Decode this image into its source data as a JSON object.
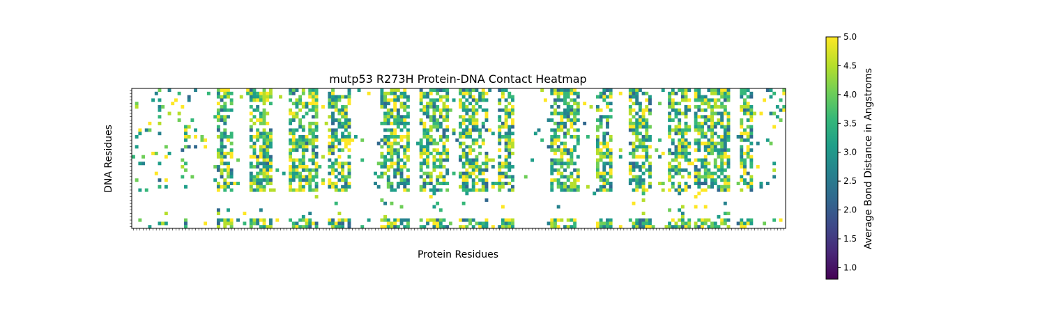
{
  "chart_data": {
    "type": "heatmap",
    "title": "mutp53 R273H Protein-DNA Contact Heatmap",
    "xlabel": "Protein Residues",
    "ylabel": "DNA Residues",
    "colorbar": {
      "label": "Average Bond Distance in Angstroms",
      "colormap": "viridis",
      "range": [
        0.8,
        5.0
      ],
      "ticks": [
        "1.0",
        "1.5",
        "2.0",
        "2.5",
        "3.0",
        "3.5",
        "4.0",
        "4.5",
        "5.0"
      ]
    },
    "n_protein_residues": 200,
    "n_dna_residues": 42,
    "colors": {
      "viridis": [
        "#440154",
        "#482878",
        "#3e4989",
        "#31688e",
        "#26828e",
        "#1f9e89",
        "#35b779",
        "#6ece58",
        "#b5de2b",
        "#fde725"
      ]
    }
  }
}
